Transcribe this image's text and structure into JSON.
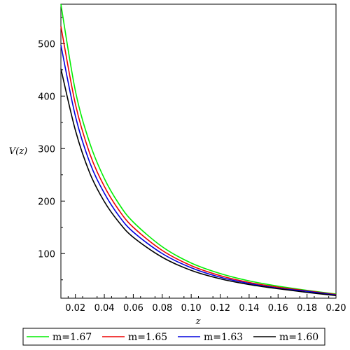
{
  "chart_data": {
    "type": "line",
    "title": "",
    "xlabel": "z",
    "ylabel": "V(z)",
    "xlim": [
      0.01,
      0.2
    ],
    "ylim": [
      15,
      575
    ],
    "grid": false,
    "legend_position": "bottom",
    "x_ticks": [
      0.02,
      0.04,
      0.06,
      0.08,
      0.1,
      0.12,
      0.14,
      0.16,
      0.18,
      0.2
    ],
    "x_tick_labels": [
      "0.02",
      "0.04",
      "0.06",
      "0.08",
      "0.10",
      "0.12",
      "0.14",
      "0.16",
      "0.18",
      "0.20"
    ],
    "y_ticks": [
      100,
      200,
      300,
      400,
      500
    ],
    "y_tick_labels": [
      "100",
      "200",
      "300",
      "400",
      "500"
    ],
    "x": [
      0.01,
      0.02,
      0.03,
      0.04,
      0.05,
      0.06,
      0.08,
      0.1,
      0.12,
      0.14,
      0.16,
      0.18,
      0.2
    ],
    "series": [
      {
        "name": "m=1.67",
        "color": "#00ee00",
        "values": [
          575,
          410,
          310,
          243,
          195,
          160,
          113,
          82,
          62,
          48,
          38,
          30,
          23
        ]
      },
      {
        "name": "m=1.65",
        "color": "#ee0000",
        "values": [
          533,
          385,
          290,
          228,
          183,
          150,
          106,
          77,
          58,
          45,
          36,
          29,
          22
        ]
      },
      {
        "name": "m=1.63",
        "color": "#0000dd",
        "values": [
          497,
          362,
          273,
          215,
          172,
          141,
          100,
          73,
          55,
          43,
          34,
          28,
          21
        ]
      },
      {
        "name": "m=1.60",
        "color": "#000000",
        "values": [
          452,
          335,
          253,
          199,
          160,
          131,
          93,
          68,
          52,
          41,
          33,
          26,
          20
        ]
      }
    ]
  }
}
